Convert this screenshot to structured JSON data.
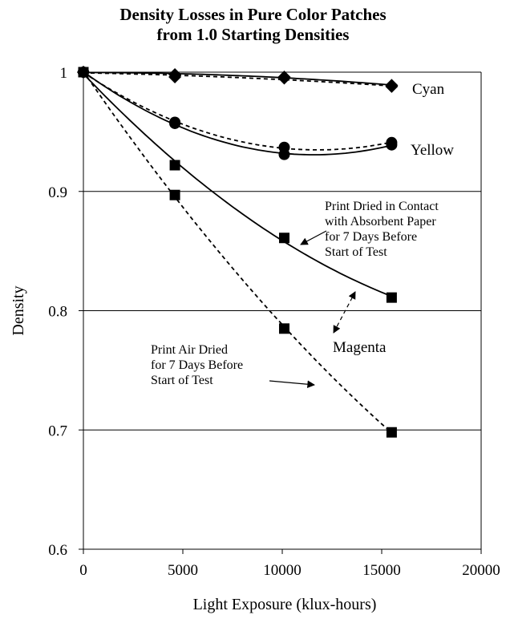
{
  "chart_data": {
    "type": "scatter",
    "title": [
      "Density Losses in Pure Color Patches",
      "from 1.0 Starting Densities"
    ],
    "xlabel": "Light Exposure (klux-hours)",
    "ylabel": "Density",
    "xlim": [
      0,
      20000
    ],
    "ylim": [
      0.6,
      1.0
    ],
    "xticks": [
      0,
      5000,
      10000,
      15000,
      20000
    ],
    "yticks": [
      0.6,
      0.7,
      0.8,
      0.9,
      1.0
    ],
    "xtick_labels": [
      "0",
      "5000",
      "10000",
      "15000",
      "20000"
    ],
    "ytick_labels": [
      "0.6",
      "0.7",
      "0.8",
      "0.9",
      "1"
    ],
    "grid": "horizontal",
    "series": [
      {
        "marker": "diamond",
        "style": "solid",
        "x": [
          0,
          4600,
          10100,
          15500
        ],
        "y": [
          1.0,
          0.998,
          0.996,
          0.989
        ]
      },
      {
        "marker": "diamond",
        "style": "dashed",
        "x": [
          0,
          4600,
          10100,
          15500
        ],
        "y": [
          1.0,
          0.996,
          0.995,
          0.988
        ]
      },
      {
        "marker": "circle",
        "style": "solid",
        "x": [
          0,
          4600,
          10100,
          15500
        ],
        "y": [
          1.0,
          0.957,
          0.931,
          0.939
        ]
      },
      {
        "marker": "circle",
        "style": "dashed",
        "x": [
          0,
          4600,
          10100,
          15500
        ],
        "y": [
          1.0,
          0.958,
          0.937,
          0.941
        ]
      },
      {
        "marker": "square",
        "style": "solid",
        "x": [
          0,
          4600,
          10100,
          15500
        ],
        "y": [
          1.0,
          0.922,
          0.861,
          0.811
        ]
      },
      {
        "marker": "square",
        "style": "dashed",
        "x": [
          0,
          4600,
          10100,
          15500
        ],
        "y": [
          1.0,
          0.897,
          0.785,
          0.698
        ]
      }
    ],
    "annotations": {
      "cyan": "Cyan",
      "yellow": "Yellow",
      "magenta": "Magenta",
      "contact": [
        "Print Dried in Contact",
        "with Absorbent Paper",
        "for 7 Days Before",
        "Start of Test"
      ],
      "air": [
        "Print Air Dried",
        "for 7 Days Before",
        "Start of Test"
      ]
    }
  }
}
